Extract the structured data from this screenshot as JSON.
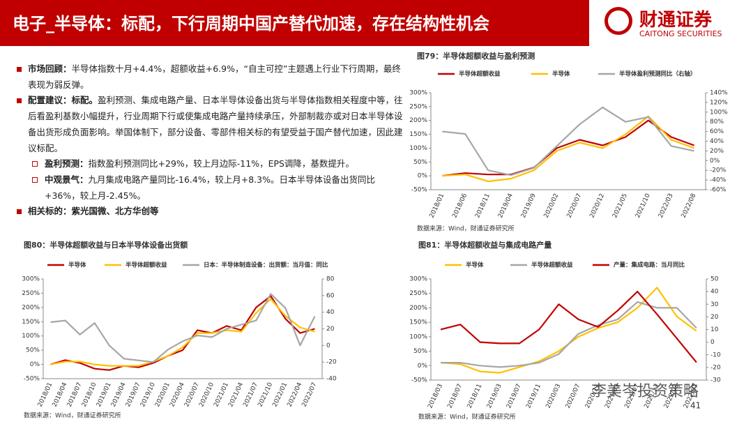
{
  "header": {
    "title": "电子_半导体：标配，下行周期中国产替代加速，存在结构性机会",
    "logo_cn": "财通证券",
    "logo_en": "CAITONG SECURITIES"
  },
  "bullets": [
    {
      "label": "市场回顾：",
      "text": "半导体指数十月+4.4%，超额收益+6.9%，“自主可控”主题遇上行业下行周期，最终表现为弱反弹。"
    },
    {
      "label": "配置建议：标配。",
      "text": "盈利预测、集成电路产量、日本半导体设备出货与半导体指数相关程度中等，往后看盈利基数小幅提升，行业周期下行或使集成电路产量持续承压，外部制裁亦或对日本半导体设备出货形成负面影响。举国体制下，部分设备、零部件相关标的有望受益于国产替代加速，因此建议标配。",
      "items": [
        {
          "label": "盈利预测：",
          "text": "指数盈利预测同比+29%，较上月边际-11%，EPS调降，基数提升。"
        },
        {
          "label": "中观景气：",
          "text": "九月集成电路产量同比-16.4%，较上月+8.3%。日本半导体设备出货同比+36%，较上月-2.45%。"
        }
      ]
    },
    {
      "label": "相关标的：紫光国微、北方华创等",
      "text": ""
    }
  ],
  "page_number": "41",
  "watermark": "李美岑投资策略",
  "chart_data": [
    {
      "type": "line",
      "title": "图79：半导体超额收益与盈利预测",
      "source": "数据来源：Wind，财通证券研究所",
      "legend": "top",
      "categories": [
        "2018/01",
        "2018/06",
        "2018/11",
        "2019/04",
        "2019/09",
        "2020/02",
        "2020/07",
        "2020/12",
        "2021/05",
        "2021/10",
        "2022/03",
        "2022/08"
      ],
      "ylim": [
        -50,
        300
      ],
      "yticks": [
        {
          "value": 300,
          "label": "300%"
        },
        {
          "value": 250,
          "label": "250%"
        },
        {
          "value": 200,
          "label": "200%"
        },
        {
          "value": 150,
          "label": "150%"
        },
        {
          "value": 100,
          "label": "100%"
        },
        {
          "value": 50,
          "label": "50%"
        },
        {
          "value": 0,
          "label": "0%"
        },
        {
          "value": -50,
          "label": "-50%"
        }
      ],
      "y2lim": [
        -60,
        140
      ],
      "y2ticks": [
        {
          "value": 140,
          "label": "140%"
        },
        {
          "value": 120,
          "label": "120%"
        },
        {
          "value": 100,
          "label": "100%"
        },
        {
          "value": 80,
          "label": "80%"
        },
        {
          "value": 60,
          "label": "60%"
        },
        {
          "value": 40,
          "label": "40%"
        },
        {
          "value": 20,
          "label": "20%"
        },
        {
          "value": 0,
          "label": "0%"
        },
        {
          "value": -20,
          "label": "-20%"
        },
        {
          "value": -40,
          "label": "-40%"
        },
        {
          "value": -60,
          "label": "-60%"
        }
      ],
      "series": [
        {
          "name": "半导体超额收益",
          "color": "#c00000",
          "values": [
            0,
            10,
            5,
            5,
            30,
            100,
            130,
            110,
            140,
            200,
            140,
            110
          ]
        },
        {
          "name": "半导体",
          "color": "#ffc000",
          "values": [
            0,
            5,
            -20,
            -10,
            20,
            90,
            120,
            100,
            150,
            215,
            130,
            100
          ]
        },
        {
          "name": "半导体盈利预测同比（右轴）",
          "color": "#a6a6a6",
          "axis": "y2",
          "values": [
            60,
            55,
            -20,
            -30,
            -15,
            30,
            75,
            110,
            80,
            90,
            30,
            20
          ]
        }
      ]
    },
    {
      "type": "line",
      "title": "图80：半导体超额收益与日本半导体设备出货额",
      "source": "数据来源：Wind，财通证券研究所",
      "legend": "top",
      "categories": [
        "2018/01",
        "2018/04",
        "2018/07",
        "2018/10",
        "2019/01",
        "2019/04",
        "2019/07",
        "2019/10",
        "2020/01",
        "2020/04",
        "2020/07",
        "2020/10",
        "2021/01",
        "2021/04",
        "2021/07",
        "2021/10",
        "2022/01",
        "2022/04",
        "2022/07"
      ],
      "ylim": [
        -50,
        300
      ],
      "yticks": [
        {
          "value": 300,
          "label": "300%"
        },
        {
          "value": 250,
          "label": "250%"
        },
        {
          "value": 200,
          "label": "200%"
        },
        {
          "value": 150,
          "label": "150%"
        },
        {
          "value": 100,
          "label": "100%"
        },
        {
          "value": 50,
          "label": "50%"
        },
        {
          "value": 0,
          "label": "0%"
        },
        {
          "value": -50,
          "label": "-50%"
        }
      ],
      "y2lim": [
        -40,
        80
      ],
      "y2ticks": [
        80,
        60,
        40,
        20,
        0,
        -20,
        -40
      ],
      "series": [
        {
          "name": "半导体",
          "color": "#c00000",
          "values": [
            0,
            15,
            5,
            -15,
            -20,
            -5,
            -10,
            5,
            30,
            50,
            120,
            110,
            135,
            120,
            200,
            240,
            160,
            110,
            125
          ]
        },
        {
          "name": "半导体超额收益",
          "color": "#ffc000",
          "values": [
            0,
            10,
            10,
            0,
            -5,
            -5,
            -5,
            10,
            30,
            60,
            110,
            110,
            120,
            115,
            180,
            230,
            170,
            130,
            115
          ]
        },
        {
          "name": "日本：半导体制造设备：出货额：当月值：同比",
          "color": "#a6a6a6",
          "axis": "y2",
          "values": [
            28,
            30,
            13,
            27,
            0,
            -16,
            -18,
            -20,
            -5,
            5,
            12,
            10,
            20,
            25,
            30,
            62,
            45,
            0,
            35
          ]
        }
      ]
    },
    {
      "type": "line",
      "title": "图81：半导体超额收益与集成电路产量",
      "source": "数据来源：Wind，财通证券研究所",
      "legend": "top",
      "categories": [
        "2018/03",
        "2018/07",
        "2018/11",
        "2019/03",
        "2019/07",
        "2019/11",
        "2020/03",
        "2020/07",
        "2020/11",
        "2021/03",
        "2021/07",
        "2021/11",
        "2022/03",
        "2022/07"
      ],
      "ylim": [
        -50,
        300
      ],
      "yticks": [
        {
          "value": 300,
          "label": "300%"
        },
        {
          "value": 250,
          "label": "250%"
        },
        {
          "value": 200,
          "label": "200%"
        },
        {
          "value": 150,
          "label": "150%"
        },
        {
          "value": 100,
          "label": "100%"
        },
        {
          "value": 50,
          "label": "50%"
        },
        {
          "value": 0,
          "label": "0%"
        },
        {
          "value": -50,
          "label": "-50%"
        }
      ],
      "y2lim": [
        -30,
        50
      ],
      "y2ticks": [
        50,
        40,
        30,
        20,
        10,
        0,
        -10,
        -20,
        -30
      ],
      "series": [
        {
          "name": "半导体",
          "color": "#ffc000",
          "values": [
            10,
            5,
            -20,
            -25,
            -5,
            15,
            50,
            100,
            130,
            150,
            200,
            270,
            170,
            120
          ]
        },
        {
          "name": "半导体超额收益",
          "color": "#a6a6a6",
          "values": [
            10,
            10,
            0,
            -5,
            0,
            10,
            40,
            110,
            140,
            160,
            220,
            200,
            200,
            130
          ]
        },
        {
          "name": "产量：集成电路：当月同比",
          "color": "#c00000",
          "axis": "y2",
          "values": [
            10,
            14,
            0,
            -1,
            -1,
            10,
            30,
            18,
            12,
            25,
            40,
            22,
            3,
            -16
          ]
        }
      ]
    }
  ]
}
